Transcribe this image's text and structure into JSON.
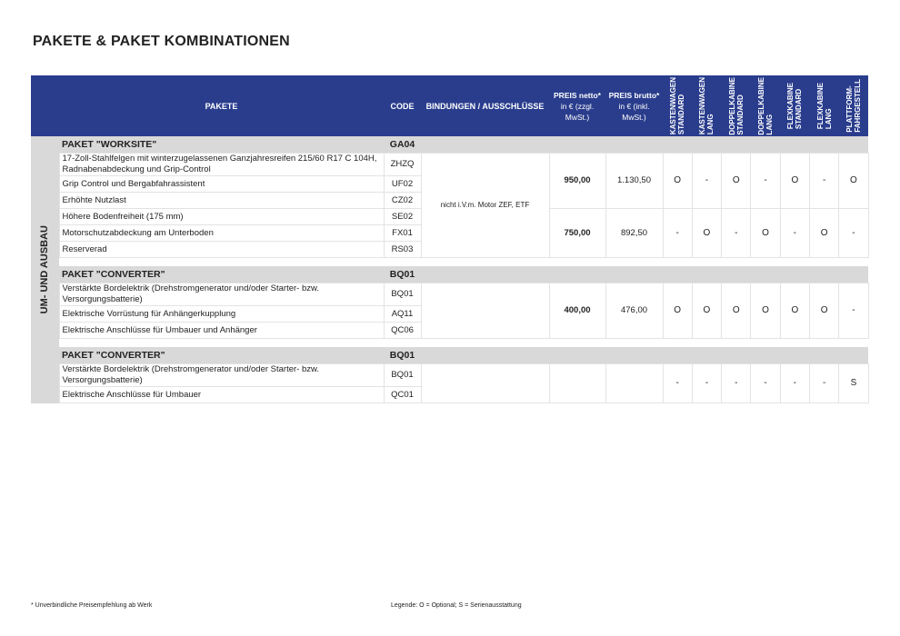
{
  "title": "PAKETE & PAKET KOMBINATIONEN",
  "side_label": "UM- UND AUSBAU",
  "header": {
    "pakete": "PAKETE",
    "code": "CODE",
    "bindungen": "BINDUNGEN / AUSSCHLÜSSE",
    "preis_netto": [
      "PREIS netto*",
      "in € (zzgl.",
      "MwSt.)"
    ],
    "preis_brutto": [
      "PREIS brutto*",
      "in € (inkl.",
      "MwSt.)"
    ],
    "models": [
      [
        "KASTENWAGEN",
        "STANDARD"
      ],
      [
        "KASTENWAGEN",
        "LANG"
      ],
      [
        "DOPPELKABINE",
        "STANDARD"
      ],
      [
        "DOPPELKABINE",
        "LANG"
      ],
      [
        "FLEXKABINE",
        "STANDARD"
      ],
      [
        "FLEXKABINE",
        "LANG"
      ],
      [
        "PLATTFORM-",
        "FAHRGESTELL"
      ]
    ]
  },
  "groups": [
    {
      "title": "PAKET \"WORKSITE\"",
      "code": "GA04",
      "bindung": "nicht i.V.m. Motor ZEF, ETF",
      "blocks": [
        {
          "netto": "950,00",
          "brutto": "1.130,50",
          "marks": [
            "O",
            "-",
            "O",
            "-",
            "O",
            "-",
            "O"
          ],
          "items": [
            {
              "text": "17-Zoll-Stahlfelgen mit winterzugelassenen Ganzjahresreifen 215/60 R17 C 104H, Radnabenabdeckung und Grip-Control",
              "code": "ZHZQ"
            },
            {
              "text": "Grip Control und Bergabfahrassistent",
              "code": "UF02"
            },
            {
              "text": "Erhöhte Nutzlast",
              "code": "CZ02"
            }
          ]
        },
        {
          "netto": "750,00",
          "brutto": "892,50",
          "marks": [
            "-",
            "O",
            "-",
            "O",
            "-",
            "O",
            "-"
          ],
          "items": [
            {
              "text": "Höhere Bodenfreiheit (175 mm)",
              "code": "SE02"
            },
            {
              "text": "Motorschutzabdeckung am Unterboden",
              "code": "FX01"
            },
            {
              "text": "Reserverad",
              "code": "RS03"
            }
          ]
        }
      ]
    },
    {
      "title": "PAKET \"CONVERTER\"",
      "code": "BQ01",
      "blocks": [
        {
          "netto": "400,00",
          "brutto": "476,00",
          "marks": [
            "O",
            "O",
            "O",
            "O",
            "O",
            "O",
            "-"
          ],
          "items": [
            {
              "text": "Verstärkte Bordelektrik (Drehstromgenerator und/oder Starter- bzw. Versorgungsbatterie)",
              "code": "BQ01"
            },
            {
              "text": "Elektrische Vorrüstung für Anhängerkupplung",
              "code": "AQ11"
            },
            {
              "text": "Elektrische Anschlüsse für Umbauer und Anhänger",
              "code": "QC06"
            }
          ]
        }
      ]
    },
    {
      "title": "PAKET \"CONVERTER\"",
      "code": "BQ01",
      "blocks": [
        {
          "marks": [
            "-",
            "-",
            "-",
            "-",
            "-",
            "-",
            "S"
          ],
          "items": [
            {
              "text": "Verstärkte Bordelektrik (Drehstromgenerator und/oder Starter- bzw. Versorgungsbatterie)",
              "code": "BQ01"
            },
            {
              "text": "Elektrische Anschlüsse für Umbauer",
              "code": "QC01"
            }
          ]
        }
      ]
    }
  ],
  "footer": {
    "note": "* Unverbindliche Preisempfehlung ab Werk",
    "legend": "Legende: O = Optional; S = Serienausstattung"
  }
}
